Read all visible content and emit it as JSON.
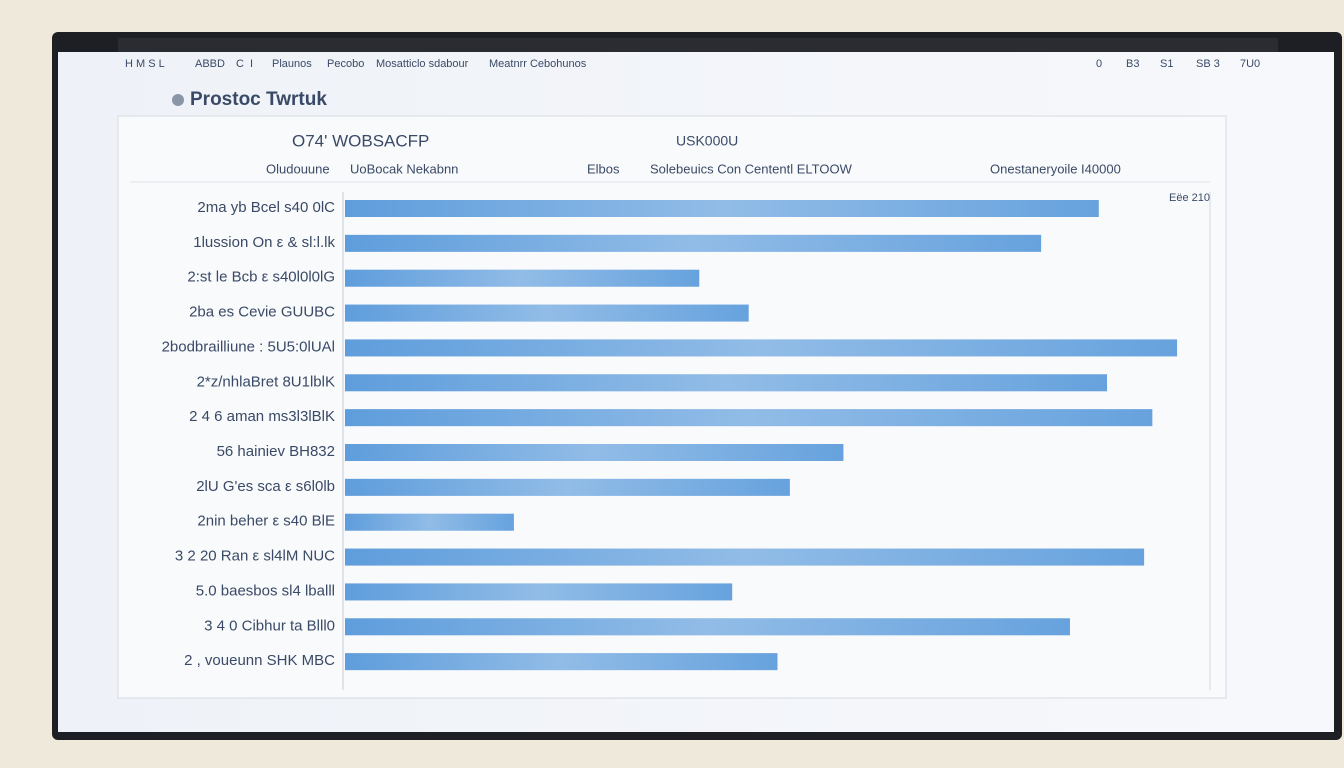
{
  "window": {
    "menu": [
      "H M S L",
      "ABBD",
      "C",
      "I",
      "Plaunos",
      "Pecobo",
      "Mosatticlo sdabour",
      "Meatnrr Cebohunos"
    ],
    "status": [
      "0",
      "B3",
      "S1",
      "SB 3",
      "7U0"
    ]
  },
  "chart_data": {
    "type": "bar",
    "orientation": "horizontal",
    "title": "Prostoc Twrtuk",
    "subtitle": "O74' WOBSACFP",
    "annotation": "USK000U",
    "column_headers": [
      "Oludouune",
      "UoBocak Nekabnn",
      "Elbos",
      "Solebeuics Con Cententl ELTOOW",
      "Onestaneryoile I40000"
    ],
    "categories": [
      "2ma yb Bcel  s40 0lC",
      "1lussion On ε & sl:l.lk",
      "2:st le Bcb ε s40l0l0lG",
      "2ba es Cevie  GUUBC",
      "2bodbrailliune : 5U5:0lUAl",
      "2*z/nhlaBret 8U1lblK",
      "2 4 6 aman  ms3l3lBlK",
      "56 hainiev  BH832",
      "2lU G'es sca ε s6l0lb",
      "2nin beher ε s40 BlE",
      "3 2 20 Ran ε sl4lM NUC",
      "5.0 baesbos  sl4 lballl",
      "3 4 0 Cibhur  ta Blll0",
      "2 , voueunn  SHK MBC"
    ],
    "values": [
      183,
      169,
      86,
      98,
      202,
      185,
      196,
      121,
      108,
      41,
      194,
      94,
      176,
      105
    ],
    "color": "#3a86d4",
    "xlim": [
      0,
      210
    ],
    "xticks": [
      {
        "value": 210,
        "label": "Eëe 210"
      }
    ],
    "grid": true
  }
}
